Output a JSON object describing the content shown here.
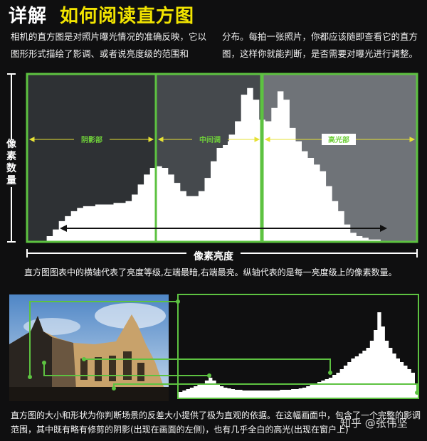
{
  "title": {
    "prefix": "详解",
    "main": "如何阅读直方图"
  },
  "intro": {
    "left": "相机的直方图是对照片曝光情况的准确反映，它以图形形式描绘了影调、或者说亮度级的范围和",
    "right": "分布。每拍一张照片，你都应该随即查看它的直方图，这样你就能判断，是否需要对曝光进行调整。"
  },
  "axes": {
    "ylabel": "像素数量",
    "xlabel": "像素亮度"
  },
  "zones": {
    "shadow": "阴影部",
    "midtone": "中间调",
    "highlight": "高光部"
  },
  "caption1": "直方图图表中的横轴代表了亮度等级,左端最暗,右端最亮。纵轴代表的是每一亮度级上的像素数量。",
  "caption2": "直方图的大小和形状为你判断场景的反差大小提供了极为直观的依据。在这幅画面中，包含了一个完整的影调范围，其中既有略有修剪的阴影(出现在画面的左侧)，也有几乎全白的高光(出现在窗户上)",
  "watermark": "知乎 @张伟坚",
  "colors": {
    "accent_green": "#5dc241",
    "title_yellow": "#f2e400",
    "zone_label": "#6fcf3a",
    "arrow_yellow": "#e6e135"
  },
  "chart_data": [
    {
      "type": "area",
      "title": "",
      "xlabel": "像素亮度",
      "ylabel": "像素数量",
      "zones": [
        "阴影部",
        "中间调",
        "高光部"
      ],
      "x": [
        0,
        4,
        8,
        12,
        16,
        20,
        24,
        28,
        32,
        36,
        40,
        44,
        48,
        52,
        56,
        60,
        64,
        68,
        72,
        76,
        80,
        84,
        88,
        92,
        96,
        100,
        104,
        108,
        112,
        116,
        120,
        124,
        128,
        132,
        136,
        140,
        144,
        148,
        152,
        156,
        160,
        164,
        168,
        172,
        176,
        180,
        184,
        188,
        192,
        196,
        200,
        204,
        208,
        212,
        216,
        220,
        224,
        228,
        232,
        236,
        240,
        244,
        248,
        252,
        255
      ],
      "values": [
        0,
        0,
        0,
        3,
        7,
        12,
        15,
        18,
        20,
        21,
        21,
        22,
        22,
        22,
        23,
        23,
        24,
        28,
        34,
        40,
        44,
        45,
        44,
        40,
        35,
        30,
        27,
        27,
        30,
        38,
        48,
        56,
        60,
        64,
        72,
        88,
        92,
        85,
        73,
        72,
        80,
        90,
        85,
        68,
        60,
        54,
        50,
        46,
        42,
        33,
        24,
        18,
        10,
        5,
        3,
        2,
        1,
        1,
        0,
        0,
        0,
        0,
        0,
        0,
        0
      ],
      "ylim": [
        0,
        100
      ]
    },
    {
      "type": "area",
      "title": "",
      "x": [
        0,
        4,
        8,
        12,
        16,
        20,
        24,
        28,
        32,
        36,
        40,
        44,
        48,
        52,
        56,
        60,
        64,
        68,
        72,
        76,
        80,
        84,
        88,
        92,
        96,
        100,
        104,
        108,
        112,
        116,
        120,
        124,
        128,
        132,
        136,
        140,
        144,
        148,
        152,
        156,
        160,
        164,
        168,
        172,
        176,
        180,
        184,
        188,
        192,
        196,
        200,
        204,
        208,
        212,
        216,
        220,
        224,
        228,
        232,
        236,
        240,
        244,
        248,
        252,
        255
      ],
      "values": [
        8,
        10,
        12,
        14,
        16,
        18,
        20,
        24,
        28,
        24,
        20,
        16,
        14,
        13,
        12,
        11,
        11,
        10,
        10,
        10,
        10,
        10,
        10,
        10,
        10,
        10,
        10,
        11,
        11,
        11,
        12,
        12,
        13,
        14,
        16,
        18,
        20,
        22,
        24,
        26,
        28,
        32,
        35,
        40,
        45,
        50,
        55,
        58,
        62,
        66,
        70,
        80,
        95,
        120,
        100,
        80,
        70,
        62,
        55,
        50,
        45,
        40,
        35,
        20,
        20
      ],
      "ylim": [
        0,
        140
      ]
    }
  ]
}
